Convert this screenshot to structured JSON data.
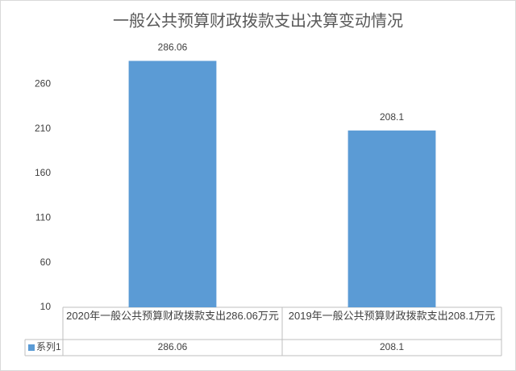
{
  "chart_data": {
    "type": "bar",
    "title": "一般公共预算财政拨款支出决算变动情况",
    "categories": [
      "2020年一般公共预算财政拨款支出286.06万元",
      "2019年一般公共预算财政拨款支出208.1万元"
    ],
    "series": [
      {
        "name": "系列1",
        "color": "#5b9bd5",
        "values": [
          286.06,
          208.1
        ]
      }
    ],
    "ylim": [
      10,
      310
    ],
    "yticks": [
      10,
      60,
      110,
      160,
      210,
      260
    ],
    "grid": false
  }
}
